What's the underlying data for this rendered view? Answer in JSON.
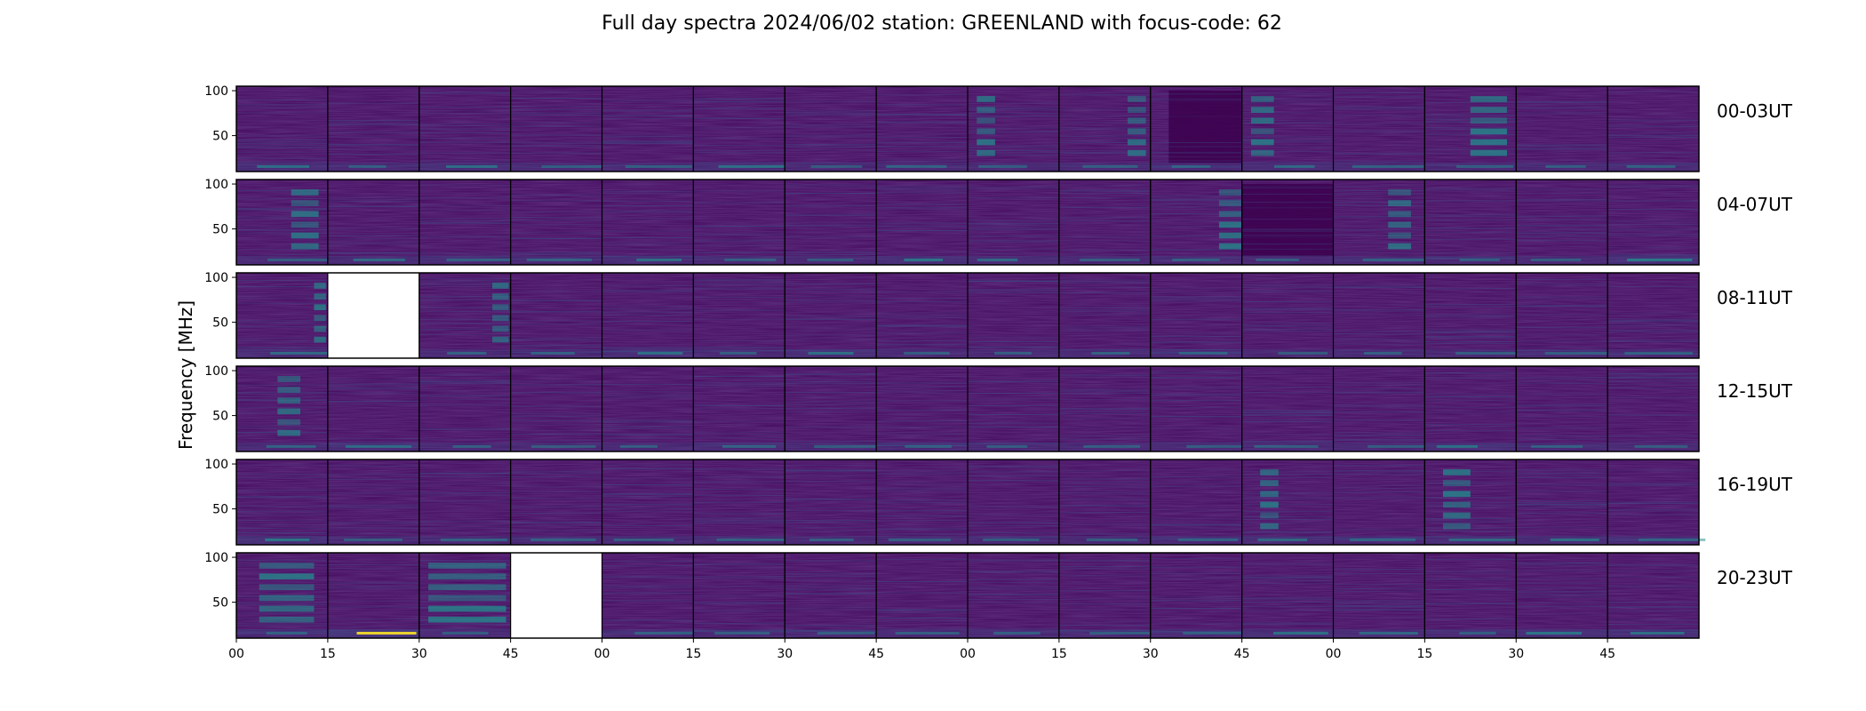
{
  "chart_data": {
    "type": "heatmap",
    "title": "Full day spectra 2024/06/02 station: GREENLAND with focus-code: 62",
    "ylabel": "Frequency [MHz]",
    "xlabel": "",
    "ylim": [
      10,
      105
    ],
    "yticks": [
      50,
      100
    ],
    "xticks": [
      "00",
      "15",
      "30",
      "45",
      "00",
      "15",
      "30",
      "45",
      "00",
      "15",
      "30",
      "45",
      "00",
      "15",
      "30",
      "45"
    ],
    "colormap": "viridis",
    "colors": {
      "background": "#44075d",
      "low": "#440154",
      "mid": "#3b528b",
      "high": "#21908d",
      "peak": "#fde725",
      "missing": "#ffffff"
    },
    "rows": [
      {
        "label": "00-03UT",
        "missing_panels": [],
        "bursts": [
          [
            8,
            0.1,
            0.3
          ],
          [
            9,
            0.75,
            0.95
          ],
          [
            11,
            0.1,
            0.35
          ],
          [
            13,
            0.5,
            0.9
          ]
        ],
        "dark_panels": [
          [
            10,
            0.2,
            1.0
          ]
        ],
        "low_lines": [
          [
            0,
            0.6
          ],
          [
            2,
            0.6
          ],
          [
            5,
            0.6
          ],
          [
            6,
            0.3
          ],
          [
            7,
            0.4
          ],
          [
            11,
            0.5
          ],
          [
            12,
            0.4
          ],
          [
            15,
            0.4
          ]
        ]
      },
      {
        "label": "04-07UT",
        "missing_panels": [],
        "bursts": [
          [
            0,
            0.6,
            0.9
          ],
          [
            10,
            0.75,
            1.0
          ],
          [
            12,
            0.6,
            0.85
          ]
        ],
        "dark_panels": [
          [
            11,
            0.0,
            1.0
          ]
        ],
        "low_lines": [
          [
            1,
            0.5
          ],
          [
            4,
            0.6
          ],
          [
            7,
            0.7
          ],
          [
            8,
            0.5
          ],
          [
            15,
            0.8
          ]
        ]
      },
      {
        "label": "08-11UT",
        "missing_panels": [
          1
        ],
        "bursts": [
          [
            0,
            0.85,
            0.98
          ],
          [
            2,
            0.8,
            0.98
          ]
        ],
        "dark_panels": [],
        "low_lines": [
          [
            0,
            0.5
          ],
          [
            2,
            0.4
          ],
          [
            4,
            0.6
          ],
          [
            6,
            0.6
          ],
          [
            9,
            0.4
          ],
          [
            11,
            0.3
          ]
        ]
      },
      {
        "label": "12-15UT",
        "missing_panels": [],
        "bursts": [
          [
            0,
            0.45,
            0.7
          ]
        ],
        "dark_panels": [],
        "low_lines": [
          [
            0,
            0.4
          ],
          [
            1,
            0.5
          ],
          [
            3,
            0.3
          ],
          [
            5,
            0.4
          ],
          [
            13,
            0.6
          ],
          [
            15,
            0.3
          ]
        ]
      },
      {
        "label": "16-19UT",
        "missing_panels": [],
        "bursts": [
          [
            11,
            0.2,
            0.4
          ],
          [
            13,
            0.2,
            0.5
          ]
        ],
        "dark_panels": [],
        "low_lines": [
          [
            0,
            0.7
          ],
          [
            11,
            0.5
          ],
          [
            12,
            0.4
          ],
          [
            13,
            0.5
          ],
          [
            14,
            0.6
          ]
        ]
      },
      {
        "label": "20-23UT",
        "missing_panels": [
          3
        ],
        "bursts": [
          [
            0,
            0.25,
            0.85
          ],
          [
            2,
            0.1,
            0.95
          ]
        ],
        "dark_panels": [],
        "low_lines": [
          [
            1,
            1.0
          ],
          [
            11,
            0.6
          ],
          [
            12,
            0.5
          ],
          [
            14,
            0.7
          ],
          [
            15,
            0.6
          ]
        ]
      }
    ]
  }
}
